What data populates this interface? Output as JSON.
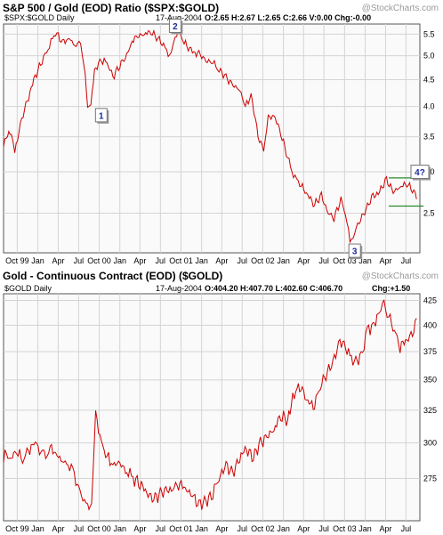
{
  "chart_data": [
    {
      "type": "line",
      "title": "S&P 500 / Gold (EOD) Ratio ($SPX:$GOLD)",
      "watermark": "@StockCharts.com",
      "legend": {
        "symbol": "$SPX:$GOLD Daily",
        "date": "17-Aug-2004",
        "quote": "O:2.65 H:2.67 L:2.65 C:2.66 V:0.00 Chg:-0.00"
      },
      "x_ticks": [
        "Oct 99",
        "Jan",
        "Apr",
        "Jul",
        "Oct 00",
        "Jan",
        "Apr",
        "Jul",
        "Oct 01",
        "Jan",
        "Apr",
        "Jul",
        "Oct 02",
        "Jan",
        "Apr",
        "Jul",
        "Oct 03",
        "Jan",
        "Apr",
        "Jul",
        "Oct 04",
        "Jan",
        "Apr",
        "Jul"
      ],
      "y_ticks": [
        "5.5",
        "5.0",
        "4.5",
        "4.0",
        "3.5",
        "3.0",
        "2.5"
      ],
      "ylim": [
        2.1,
        5.75
      ],
      "log_scale": true,
      "series": [
        {
          "color": "#cc0000",
          "x": [
            "1999-08-01",
            "1999-09-05",
            "1999-09-20",
            "1999-10-15",
            "1999-11-15",
            "1999-12-20",
            "2000-01-20",
            "2000-02-15",
            "2000-03-20",
            "2000-04-20",
            "2000-05-20",
            "2000-06-20",
            "2000-07-10",
            "2000-07-25",
            "2000-08-10",
            "2000-08-25",
            "2000-09-10",
            "2000-10-10",
            "2000-11-05",
            "2000-12-01",
            "2001-01-01",
            "2001-01-25",
            "2001-02-25",
            "2001-03-20",
            "2001-04-20",
            "2001-05-20",
            "2001-06-20",
            "2001-07-15",
            "2001-08-05",
            "2001-08-25",
            "2001-09-05",
            "2001-09-25",
            "2001-10-15",
            "2001-11-15",
            "2001-12-20",
            "2002-01-20",
            "2002-02-20",
            "2002-03-20",
            "2002-04-20",
            "2002-05-20",
            "2002-06-20",
            "2002-07-15",
            "2002-08-10",
            "2002-09-10",
            "2002-10-05",
            "2002-10-25",
            "2002-11-20",
            "2002-12-20",
            "2003-01-20",
            "2003-02-15",
            "2003-03-15",
            "2003-04-20",
            "2003-05-20",
            "2003-06-20",
            "2003-07-20",
            "2003-08-15",
            "2003-09-15",
            "2003-10-05",
            "2003-10-25",
            "2003-11-15",
            "2003-12-05",
            "2004-01-05",
            "2004-02-05",
            "2004-03-05",
            "2004-04-05",
            "2004-05-05",
            "2004-06-05",
            "2004-07-05",
            "2004-08-05",
            "2004-08-17"
          ],
          "values": [
            3.4,
            3.6,
            3.25,
            3.7,
            4.1,
            4.55,
            4.9,
            5.15,
            5.55,
            5.3,
            5.4,
            5.2,
            5.35,
            4.8,
            4.0,
            4.05,
            4.7,
            4.9,
            4.85,
            4.55,
            4.8,
            4.95,
            5.3,
            5.45,
            5.5,
            5.55,
            5.4,
            5.25,
            5.0,
            5.15,
            5.45,
            5.55,
            5.3,
            5.1,
            5.05,
            4.9,
            4.85,
            4.7,
            4.55,
            4.4,
            4.3,
            4.0,
            4.2,
            3.5,
            3.3,
            3.8,
            3.85,
            3.55,
            3.2,
            2.95,
            2.85,
            2.7,
            2.6,
            2.7,
            2.5,
            2.45,
            2.65,
            2.5,
            2.2,
            2.3,
            2.4,
            2.55,
            2.7,
            2.75,
            2.9,
            2.75,
            2.8,
            2.85,
            2.75,
            2.66
          ]
        }
      ],
      "channel": {
        "upper": 2.92,
        "lower": 2.58,
        "from": "2004-04-15",
        "to": "2004-08-17",
        "color": "#2a8a2a"
      },
      "annotations": [
        {
          "label": "1",
          "x": "2000-10-10",
          "y": 3.85
        },
        {
          "label": "2",
          "x": "2001-09-05",
          "y": 5.75
        },
        {
          "label": "3",
          "x": "2003-11-15",
          "y": 2.12
        },
        {
          "label": "4?",
          "x": "2004-09-01",
          "y": 3.0
        }
      ]
    },
    {
      "type": "line",
      "title": "Gold - Continuous Contract (EOD) ($GOLD)",
      "watermark": "@StockCharts.com",
      "legend": {
        "symbol": "$GOLD Daily",
        "date": "17-Aug-2004",
        "quote_main": "O:404.20 H:407.70 L:402.60 C:406.70",
        "quote_chg": "Chg:+1.50"
      },
      "x_ticks": [
        "Oct 99",
        "Jan",
        "Apr",
        "Jul",
        "Oct 00",
        "Jan",
        "Apr",
        "Jul",
        "Oct 01",
        "Jan",
        "Apr",
        "Jul",
        "Oct 02",
        "Jan",
        "Apr",
        "Jul",
        "Oct 03",
        "Jan",
        "Apr",
        "Jul",
        "Oct 04",
        "Jan",
        "Apr",
        "Jul"
      ],
      "y_ticks": [
        "425",
        "400",
        "375",
        "350",
        "325",
        "300",
        "275"
      ],
      "ylim": [
        248,
        432
      ],
      "log_scale": true,
      "series": [
        {
          "color": "#cc0000",
          "x": [
            "1999-08-01",
            "1999-08-20",
            "1999-09-10",
            "1999-09-20",
            "1999-10-05",
            "1999-10-25",
            "1999-11-20",
            "1999-12-20",
            "2000-01-15",
            "2000-02-05",
            "2000-02-25",
            "2000-03-20",
            "2000-04-20",
            "2000-05-15",
            "2000-06-05",
            "2000-06-25",
            "2000-07-20",
            "2000-08-10",
            "2000-08-28",
            "2000-09-15",
            "2000-10-10",
            "2000-11-05",
            "2000-12-01",
            "2001-01-01",
            "2001-02-01",
            "2001-03-01",
            "2001-04-01",
            "2001-05-01",
            "2001-06-01",
            "2001-07-01",
            "2001-08-01",
            "2001-08-25",
            "2001-09-20",
            "2001-10-20",
            "2001-11-20",
            "2001-12-20",
            "2002-01-20",
            "2002-02-20",
            "2002-03-20",
            "2002-04-20",
            "2002-05-20",
            "2002-06-20",
            "2002-07-20",
            "2002-08-20",
            "2002-09-20",
            "2002-10-20",
            "2002-11-20",
            "2002-12-20",
            "2003-01-20",
            "2003-02-05",
            "2003-02-25",
            "2003-03-20",
            "2003-04-20",
            "2003-05-20",
            "2003-06-15",
            "2003-07-10",
            "2003-08-10",
            "2003-09-10",
            "2003-10-05",
            "2003-10-25",
            "2003-11-20",
            "2003-12-20",
            "2004-01-10",
            "2004-02-05",
            "2004-03-05",
            "2004-03-25",
            "2004-04-15",
            "2004-05-10",
            "2004-06-05",
            "2004-07-05",
            "2004-08-05",
            "2004-08-17"
          ],
          "values": [
            290,
            292,
            288,
            295,
            293,
            287,
            295,
            300,
            294,
            290,
            296,
            292,
            287,
            285,
            280,
            272,
            262,
            255,
            258,
            322,
            300,
            290,
            285,
            285,
            280,
            275,
            272,
            265,
            262,
            265,
            268,
            268,
            272,
            268,
            264,
            258,
            260,
            265,
            275,
            285,
            278,
            290,
            295,
            290,
            300,
            305,
            310,
            320,
            318,
            330,
            340,
            345,
            330,
            330,
            345,
            355,
            365,
            385,
            380,
            370,
            365,
            375,
            395,
            400,
            415,
            420,
            410,
            395,
            380,
            385,
            395,
            406.7
          ]
        }
      ]
    }
  ]
}
